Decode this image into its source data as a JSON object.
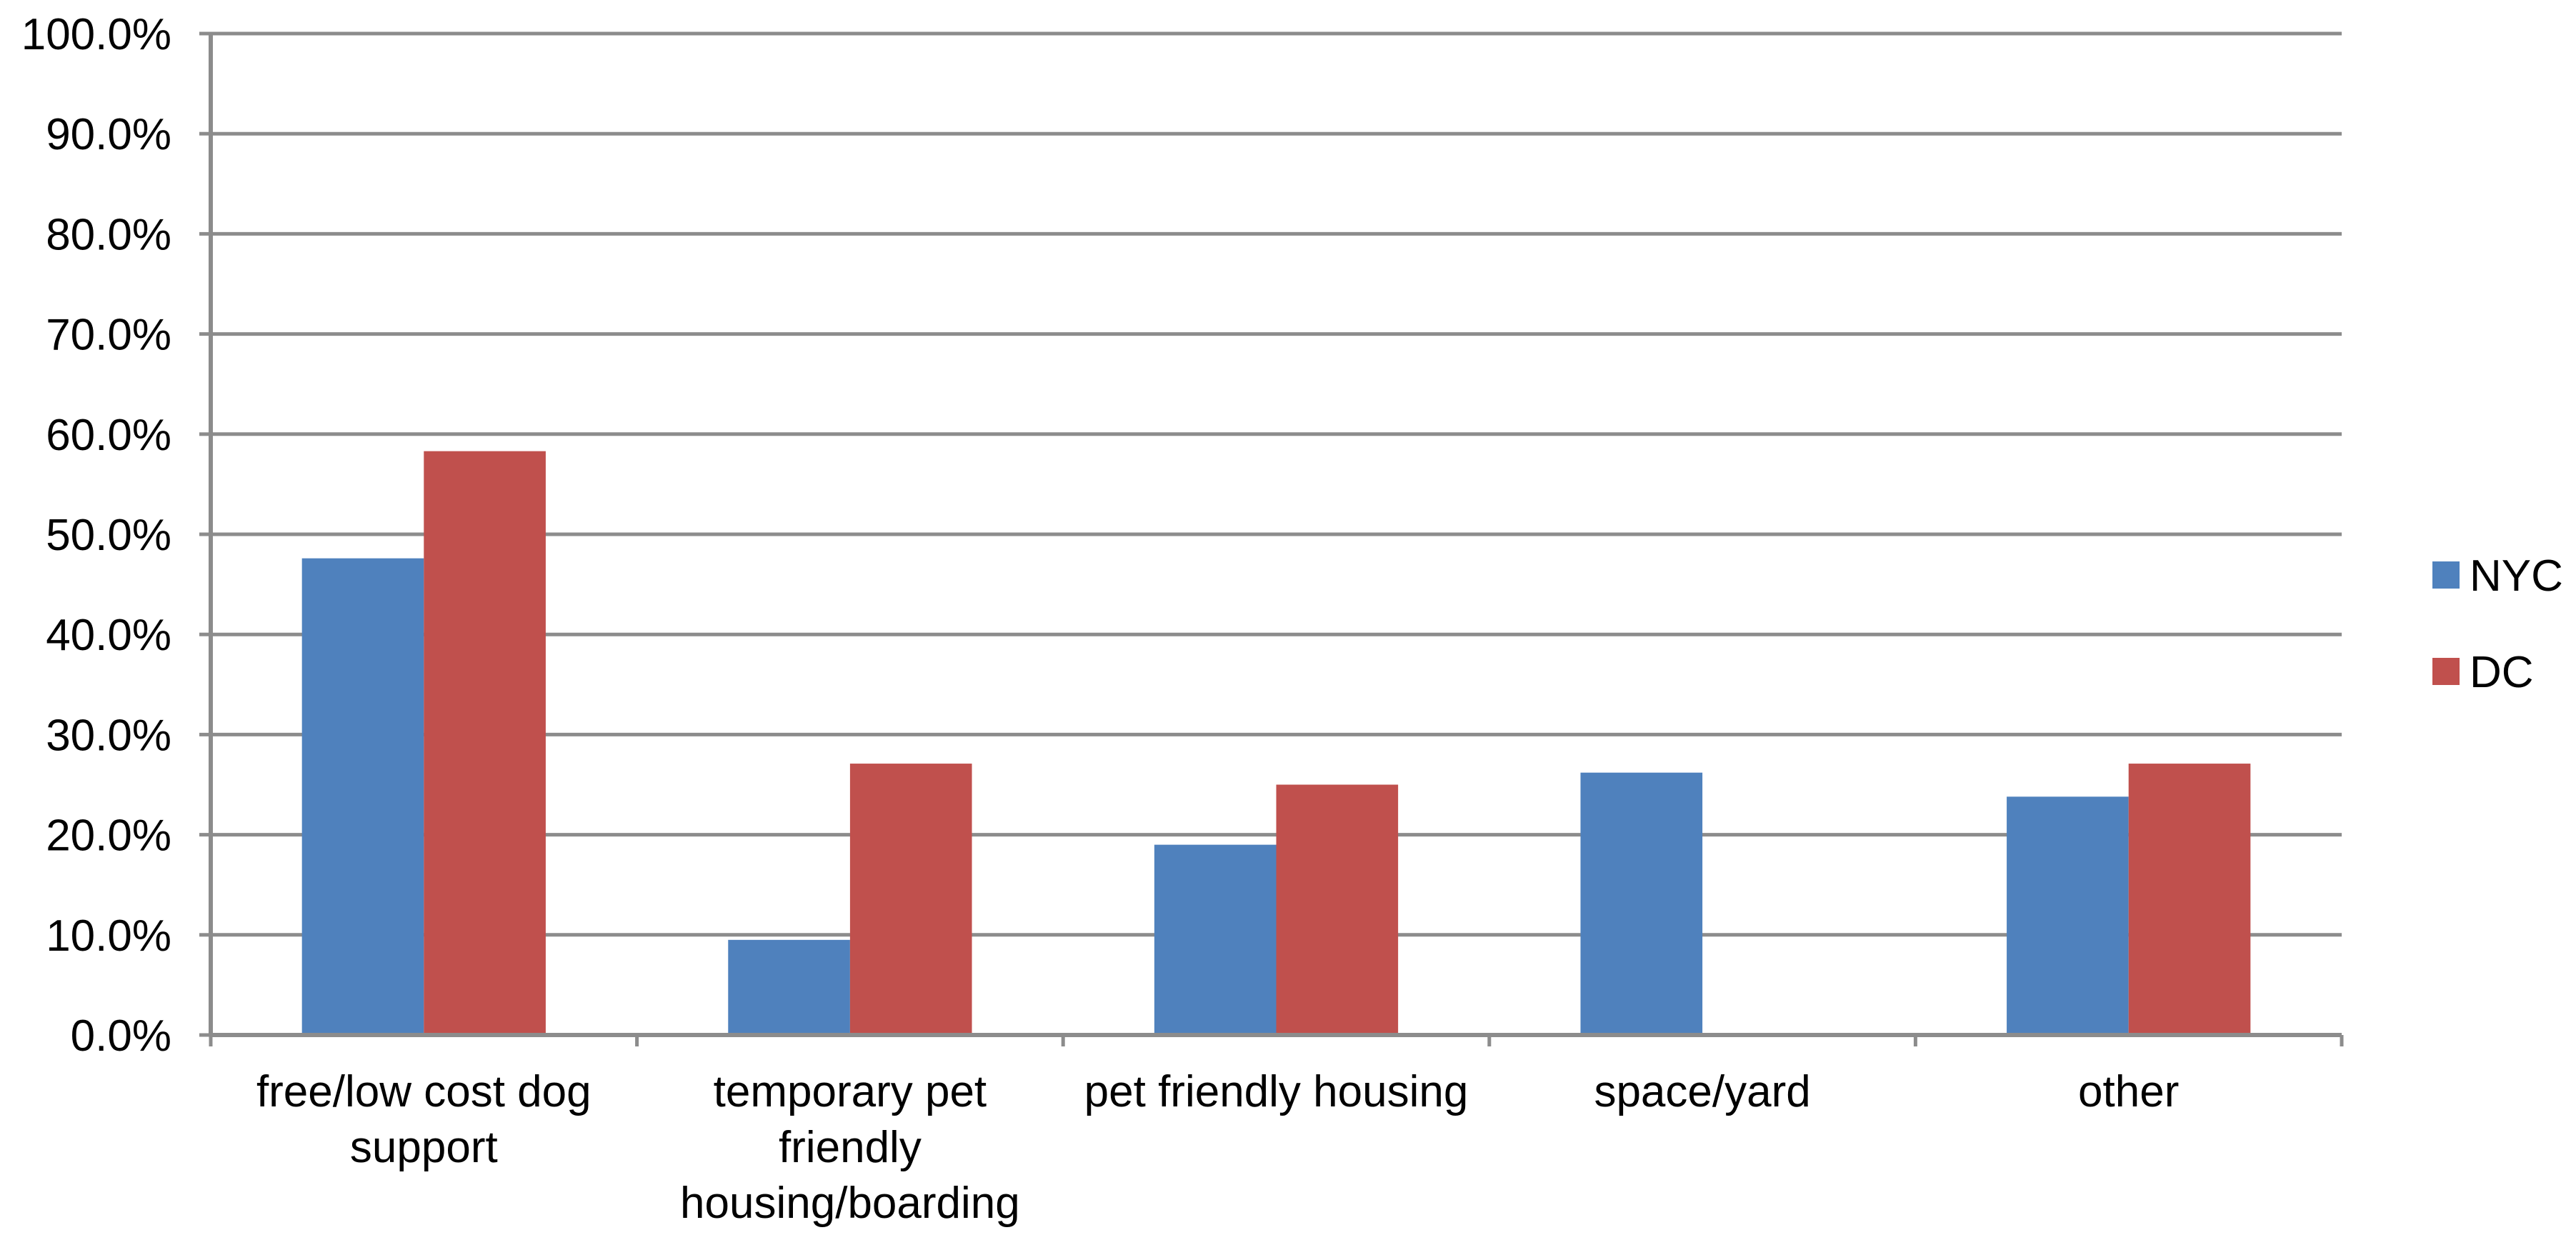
{
  "chart_data": {
    "type": "bar",
    "categories": [
      [
        "free/low cost dog",
        "support"
      ],
      [
        "temporary pet",
        "friendly",
        "housing/boarding"
      ],
      [
        "pet friendly housing"
      ],
      [
        "space/yard"
      ],
      [
        "other"
      ]
    ],
    "series": [
      {
        "name": "NYC",
        "color": "#4F81BD",
        "values": [
          47.6,
          9.5,
          19.0,
          26.2,
          23.8
        ]
      },
      {
        "name": "DC",
        "color": "#C0504D",
        "values": [
          58.3,
          27.1,
          25.0,
          null,
          27.1
        ]
      }
    ],
    "ylim": [
      0,
      100
    ],
    "yticks": [
      0,
      10,
      20,
      30,
      40,
      50,
      60,
      70,
      80,
      90,
      100
    ],
    "ytick_labels": [
      "0.0%",
      "10.0%",
      "20.0%",
      "30.0%",
      "40.0%",
      "50.0%",
      "60.0%",
      "70.0%",
      "80.0%",
      "90.0%",
      "100.0%"
    ],
    "grid": true,
    "legend_position": "right",
    "title": "",
    "xlabel": "",
    "ylabel": ""
  }
}
